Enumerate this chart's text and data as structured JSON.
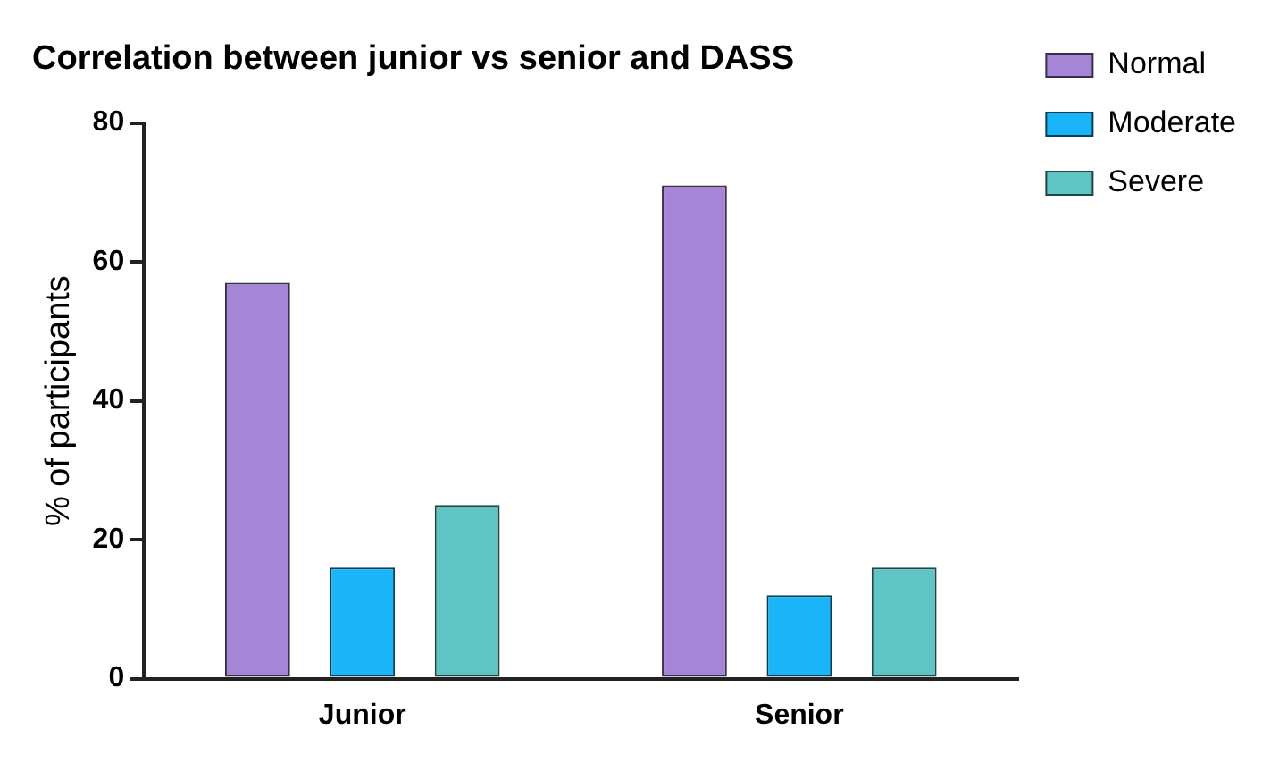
{
  "chart_data": {
    "type": "bar",
    "title": "Correlation between junior vs senior and DASS",
    "ylabel": "% of participants",
    "categories": [
      "Junior",
      "Senior"
    ],
    "series": [
      {
        "name": "Normal",
        "color": "#a585d6",
        "values": [
          57,
          71
        ]
      },
      {
        "name": "Moderate",
        "color": "#1ab4f8",
        "values": [
          16,
          12
        ]
      },
      {
        "name": "Severe",
        "color": "#5fc4c4",
        "values": [
          25,
          16
        ]
      }
    ],
    "ylim": [
      0,
      80
    ],
    "yticks": [
      0,
      20,
      40,
      60,
      80
    ],
    "grid": false,
    "legend": "right"
  }
}
